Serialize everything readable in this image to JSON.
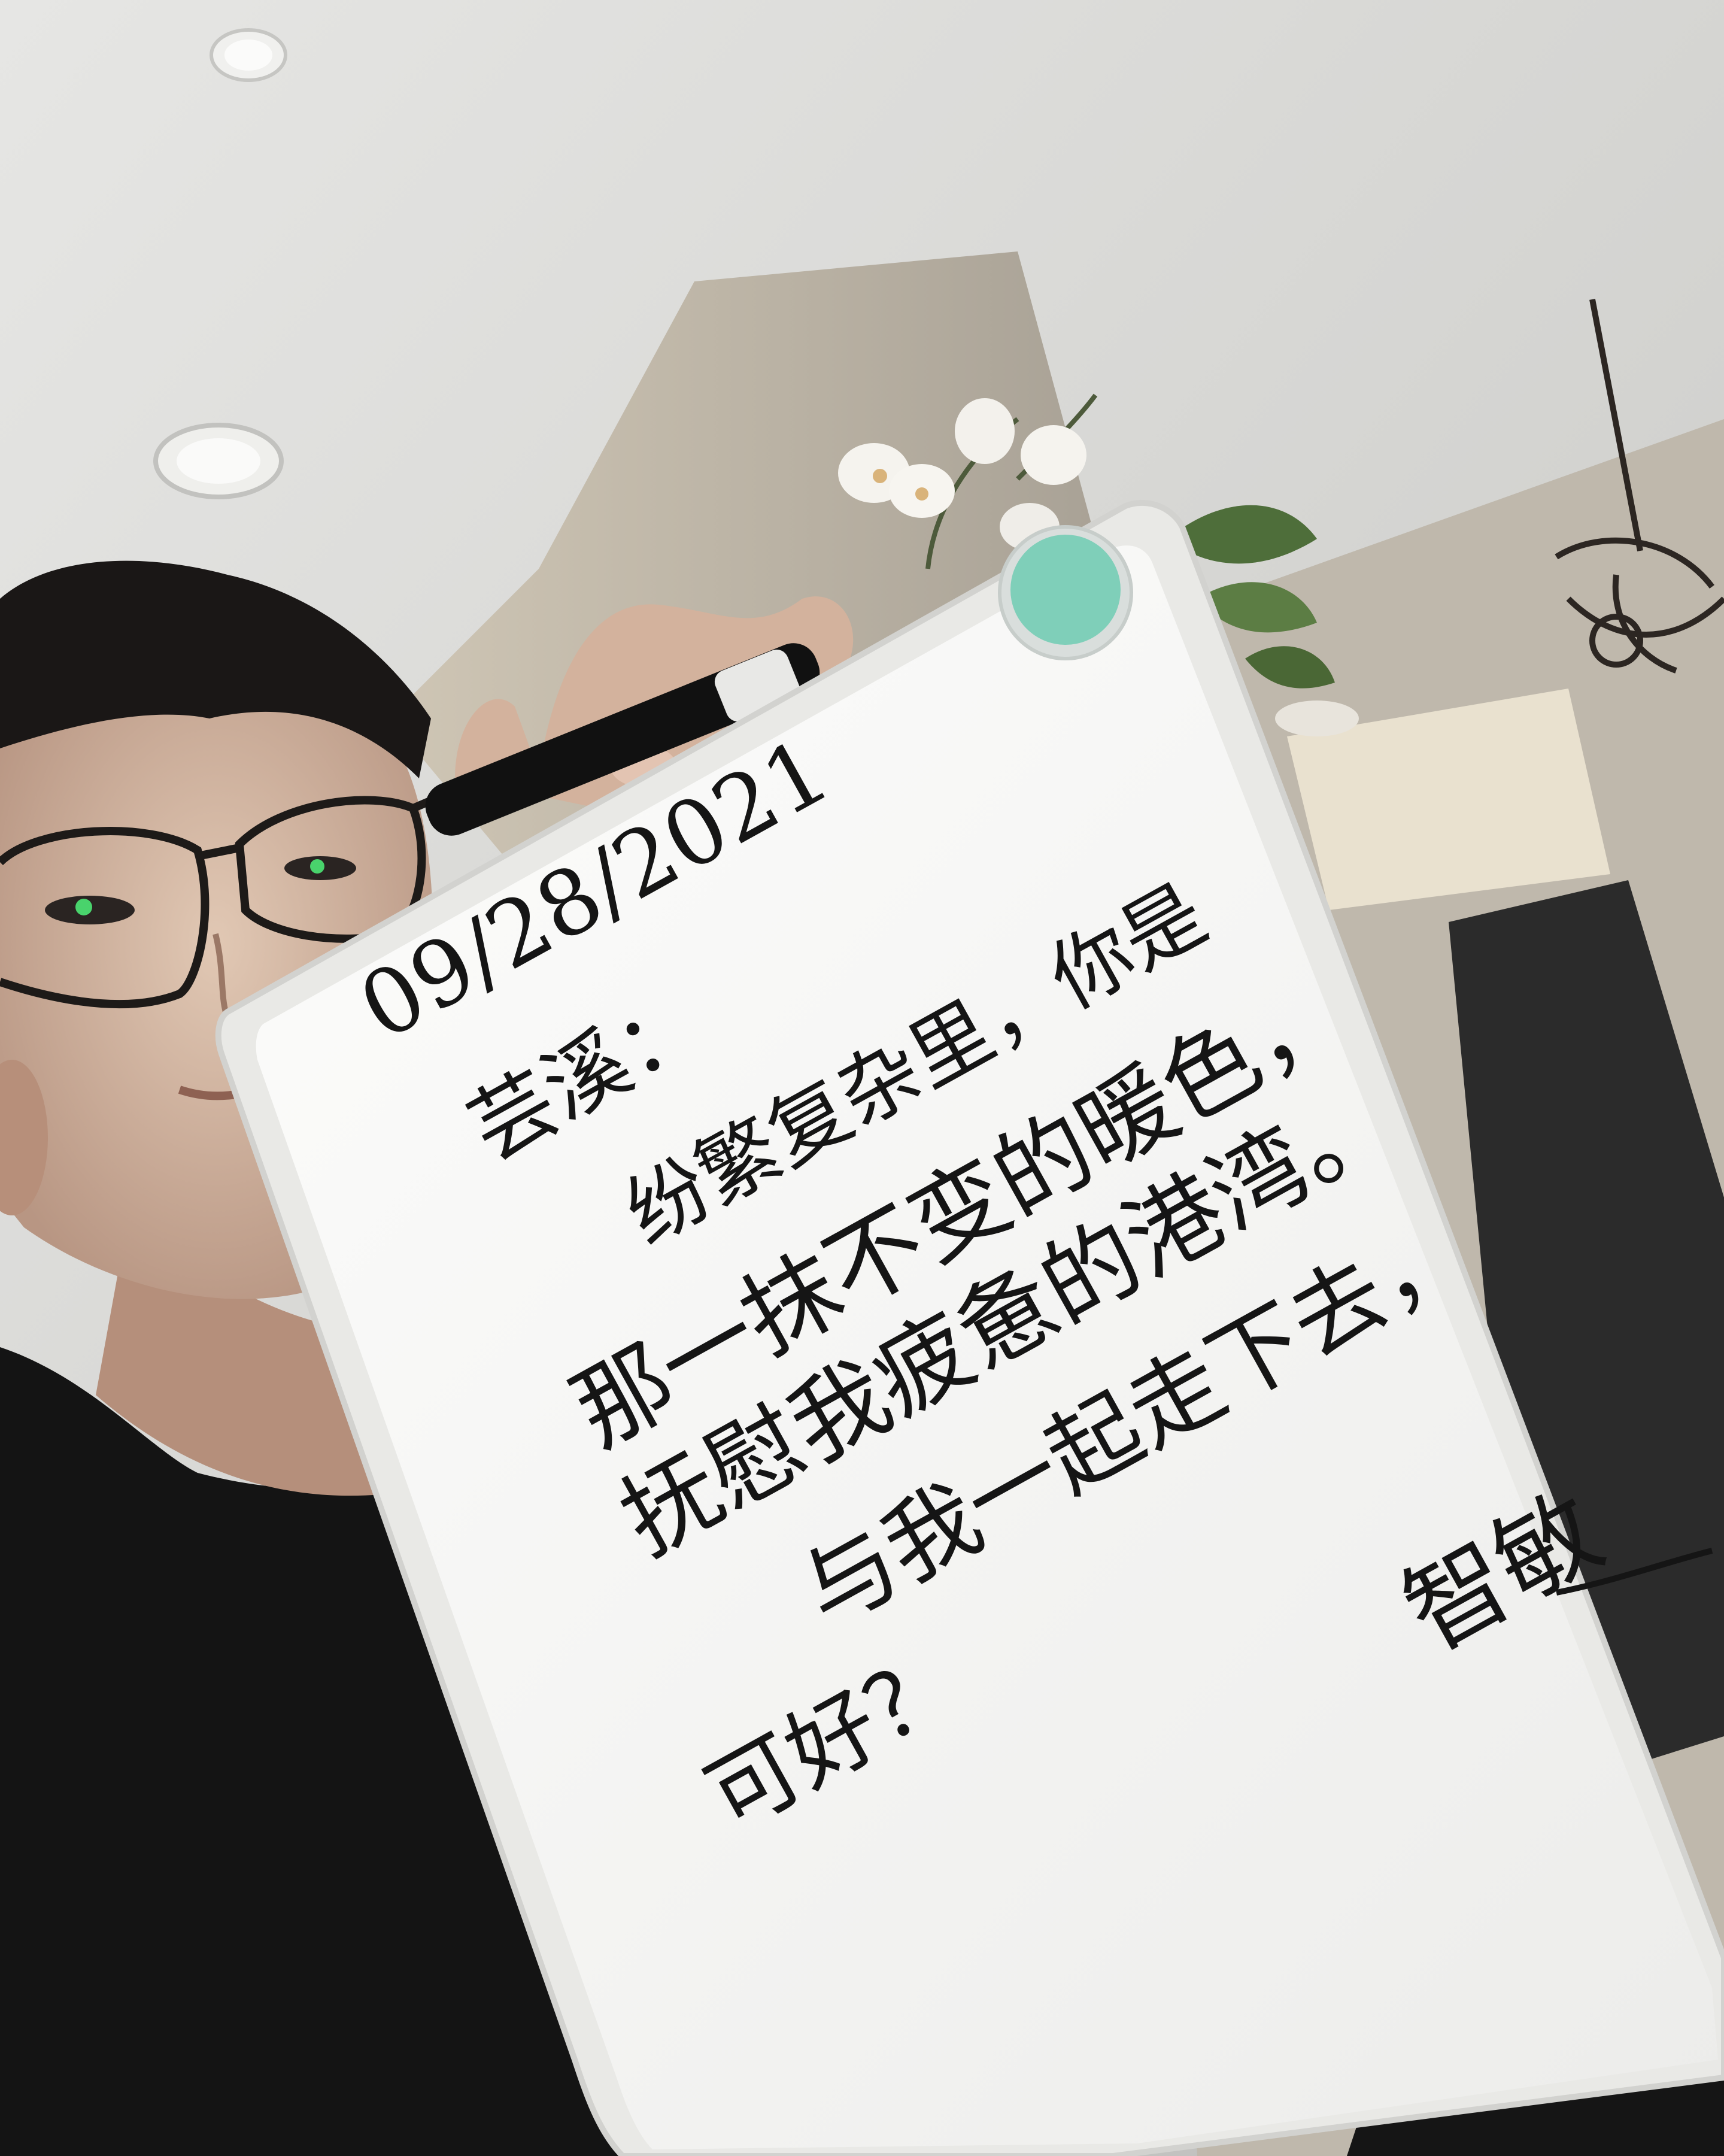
{
  "whiteboard": {
    "date": "09/28/2021",
    "greeting": "芸溪：",
    "lines": [
      "纷繁复杂里，你是",
      "那一抹不变的暖色，",
      "抚慰我疲惫的港湾。",
      "与我一起走下去，",
      "可好？"
    ],
    "signature": "智敏"
  },
  "colors": {
    "ceiling": "#d9d9d7",
    "wall": "#c9c2b4",
    "shirt": "#141414",
    "board": "#f7f7f5",
    "board_frame": "#e9e9e6",
    "magnet": "#7fcfb9",
    "ink": "#151515"
  },
  "icons": {
    "light_fixture": "recessed-light-icon",
    "chandelier": "chandelier-icon",
    "marker": "marker-icon",
    "magnet": "magnet-icon"
  }
}
